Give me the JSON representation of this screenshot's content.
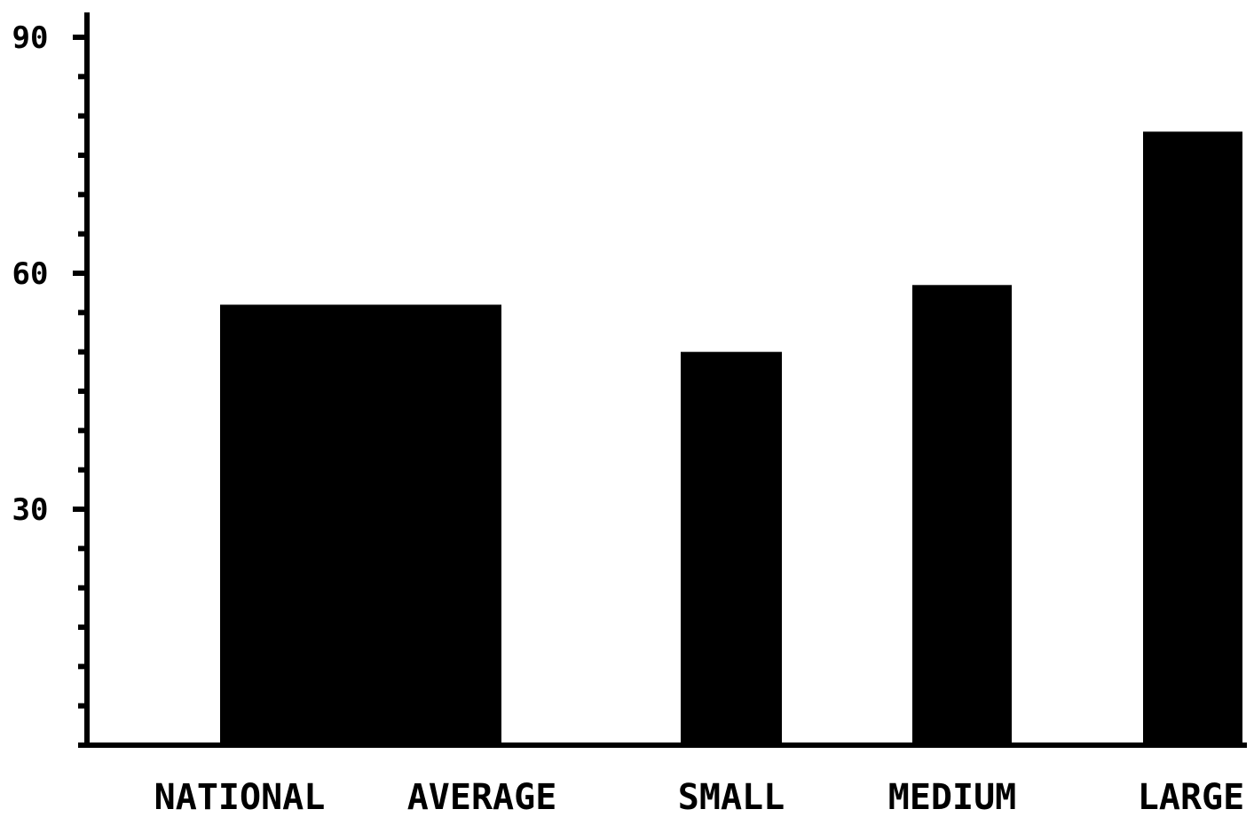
{
  "colors": {
    "bar": "#000000",
    "axis": "#000000",
    "background": "#ffffff"
  },
  "chart_data": {
    "type": "bar",
    "title": "",
    "xlabel": "",
    "ylabel": "",
    "ylim": [
      0,
      90
    ],
    "yticks": [
      "90",
      "60",
      "30"
    ],
    "ytick_values": [
      90,
      60,
      30
    ],
    "grid": false,
    "categories": [
      "NATIONAL AVERAGE",
      "SMALL",
      "MEDIUM",
      "LARGE"
    ],
    "category_label_words": [
      [
        "NATIONAL",
        "AVERAGE"
      ],
      [
        "SMALL"
      ],
      [
        "MEDIUM"
      ],
      [
        "LARGE"
      ]
    ],
    "values": [
      56,
      50,
      58.5,
      78
    ]
  }
}
